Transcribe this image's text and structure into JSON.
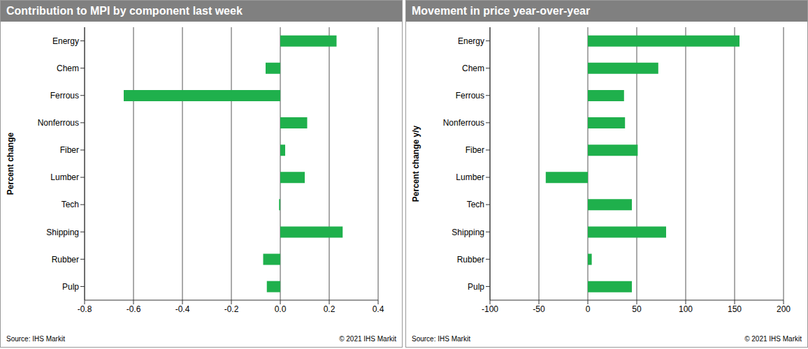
{
  "chart_data": [
    {
      "type": "bar",
      "orientation": "horizontal",
      "title": "Contribution to MPI by component last week",
      "y_label": "Percent change",
      "categories": [
        "Energy",
        "Chem",
        "Ferrous",
        "Nonferrous",
        "Fiber",
        "Lumber",
        "Tech",
        "Shipping",
        "Rubber",
        "Pulp"
      ],
      "values": [
        0.23,
        -0.06,
        -0.64,
        0.11,
        0.02,
        0.1,
        -0.005,
        0.255,
        -0.07,
        -0.055
      ],
      "color": "#1fb04c",
      "xlim": [
        -0.8,
        0.4
      ],
      "xticks": [
        -0.8,
        -0.6,
        -0.4,
        -0.2,
        {
          "value": 0,
          "label": "0.0"
        },
        0.2,
        0.4
      ],
      "grid": true,
      "annotations": [
        "Source: IHS Markit",
        "© 2021 IHS Markit"
      ]
    },
    {
      "type": "bar",
      "orientation": "horizontal",
      "title": "Movement in price year-over-year",
      "y_label": "Percent change y/y",
      "categories": [
        "Energy",
        "Chem",
        "Ferrous",
        "Nonferrous",
        "Fiber",
        "Lumber",
        "Tech",
        "Shipping",
        "Rubber",
        "Pulp"
      ],
      "values": [
        155,
        72,
        37,
        38,
        51,
        -43,
        45,
        80,
        4,
        45
      ],
      "color": "#1fb04c",
      "xlim": [
        -100,
        200
      ],
      "xticks": [
        -100,
        -50,
        0,
        50,
        100,
        150,
        200
      ],
      "grid": true,
      "annotations": [
        "Source: IHS Markit",
        "© 2021 IHS Markit"
      ]
    }
  ]
}
